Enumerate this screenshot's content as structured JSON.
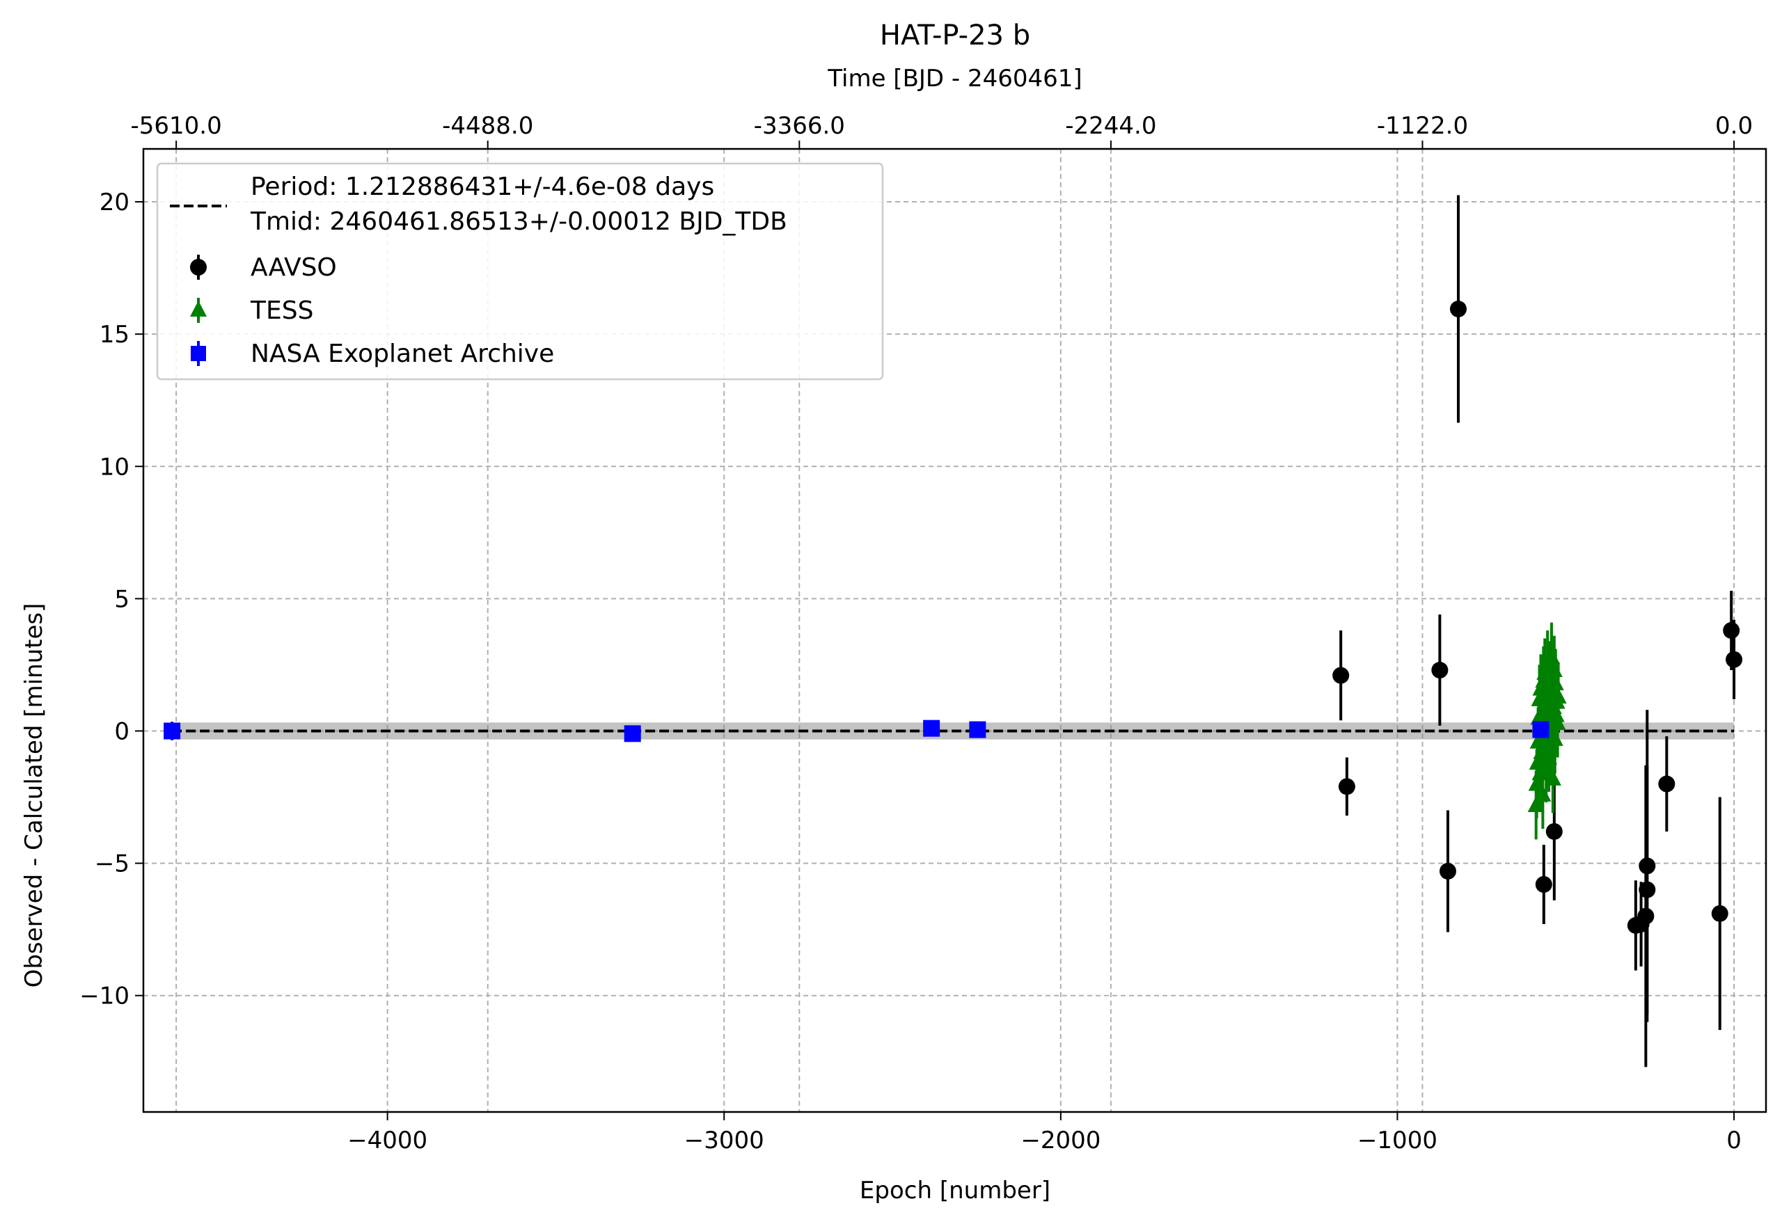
{
  "chart_data": {
    "type": "scatter",
    "title": "HAT-P-23 b",
    "xlabel": "Epoch [number]",
    "ylabel": "Observed - Calculated [minutes]",
    "top_xlabel": "Time [BJD - 2460461]",
    "xlim": [
      -4725,
      95
    ],
    "ylim": [
      -14.4,
      22.0
    ],
    "x_ticks": [
      -4000,
      -3000,
      -2000,
      -1000,
      0
    ],
    "x_tick_labels": [
      "−4000",
      "−3000",
      "−2000",
      "−1000",
      "0"
    ],
    "y_ticks": [
      -10,
      -5,
      0,
      5,
      10,
      15,
      20
    ],
    "y_tick_labels": [
      "−10",
      "−5",
      "0",
      "5",
      "10",
      "15",
      "20"
    ],
    "top_x_ticks": [
      -4627.5,
      -3702,
      -2776.5,
      -1851,
      -925.5,
      0
    ],
    "top_x_tick_labels": [
      "-5610.0",
      "-4488.0",
      "-3366.0",
      "-2244.0",
      "-1122.0",
      "0.0"
    ],
    "grid": true,
    "legend_position": "upper-left",
    "fit": {
      "label_line1": "Period: 1.212886431+/-4.6e-08 days",
      "label_line2": "Tmid: 2460461.86513+/-0.00012 BJD_TDB",
      "value": 0.0,
      "band": [
        -0.32,
        0.32
      ],
      "x_range": [
        -4640,
        0
      ],
      "color": "#000000"
    },
    "series": [
      {
        "name": "AAVSO",
        "marker": "circle",
        "color": "#000000",
        "points": [
          {
            "x": -1168,
            "y": 2.1,
            "err": 1.7
          },
          {
            "x": -1150,
            "y": -2.1,
            "err": 1.1
          },
          {
            "x": -874,
            "y": 2.3,
            "err": 2.1
          },
          {
            "x": -850,
            "y": -5.3,
            "err": 2.3
          },
          {
            "x": -819,
            "y": 15.95,
            "err": 4.3
          },
          {
            "x": -565,
            "y": -5.8,
            "err": 1.5
          },
          {
            "x": -534,
            "y": -3.8,
            "err": 2.6
          },
          {
            "x": -292,
            "y": -7.35,
            "err": 1.7
          },
          {
            "x": -276,
            "y": -7.3,
            "err": 1.6
          },
          {
            "x": -262,
            "y": -7.0,
            "err": 5.7
          },
          {
            "x": -258,
            "y": -6.0,
            "err": 4.7
          },
          {
            "x": -258,
            "y": -5.1,
            "err": 5.9
          },
          {
            "x": -200,
            "y": -2.0,
            "err": 1.8
          },
          {
            "x": -42,
            "y": -6.9,
            "err": 4.4
          },
          {
            "x": -8,
            "y": 3.8,
            "err": 1.5
          },
          {
            "x": 0,
            "y": 2.7,
            "err": 1.5
          }
        ]
      },
      {
        "name": "TESS",
        "marker": "triangle",
        "color": "#008000",
        "points": [
          {
            "x": -588,
            "y": -2.8,
            "err": 1.3
          },
          {
            "x": -586,
            "y": -2.0,
            "err": 1.3
          },
          {
            "x": -584,
            "y": -1.2,
            "err": 1.3
          },
          {
            "x": -582,
            "y": -0.4,
            "err": 1.3
          },
          {
            "x": -580,
            "y": 0.5,
            "err": 1.3
          },
          {
            "x": -578,
            "y": 1.2,
            "err": 1.3
          },
          {
            "x": -576,
            "y": -1.6,
            "err": 1.3
          },
          {
            "x": -574,
            "y": 1.6,
            "err": 1.3
          },
          {
            "x": -572,
            "y": -0.8,
            "err": 1.3
          },
          {
            "x": -570,
            "y": 0.2,
            "err": 1.3
          },
          {
            "x": -568,
            "y": -2.4,
            "err": 1.3
          },
          {
            "x": -566,
            "y": 1.9,
            "err": 1.3
          },
          {
            "x": -564,
            "y": -0.1,
            "err": 1.3
          },
          {
            "x": -562,
            "y": 2.2,
            "err": 1.3
          },
          {
            "x": -560,
            "y": 1.4,
            "err": 1.3
          },
          {
            "x": -558,
            "y": -1.4,
            "err": 1.3
          },
          {
            "x": -556,
            "y": 0.8,
            "err": 1.3
          },
          {
            "x": -554,
            "y": 2.5,
            "err": 1.3
          },
          {
            "x": -552,
            "y": 1.0,
            "err": 1.3
          },
          {
            "x": -550,
            "y": -1.0,
            "err": 1.3
          },
          {
            "x": -548,
            "y": 2.1,
            "err": 1.3
          },
          {
            "x": -546,
            "y": 0.4,
            "err": 1.3
          },
          {
            "x": -544,
            "y": -0.6,
            "err": 1.3
          },
          {
            "x": -542,
            "y": 2.8,
            "err": 1.3
          },
          {
            "x": -540,
            "y": 1.5,
            "err": 1.3
          },
          {
            "x": -538,
            "y": -1.8,
            "err": 1.3
          },
          {
            "x": -536,
            "y": 0.9,
            "err": 1.3
          },
          {
            "x": -534,
            "y": 2.3,
            "err": 1.3
          },
          {
            "x": -532,
            "y": -0.3,
            "err": 1.3
          },
          {
            "x": -530,
            "y": 1.8,
            "err": 1.3
          },
          {
            "x": -528,
            "y": 0.6,
            "err": 1.3
          },
          {
            "x": -526,
            "y": 1.1,
            "err": 1.3
          },
          {
            "x": -524,
            "y": 0.3,
            "err": 1.3
          },
          {
            "x": -522,
            "y": 1.3,
            "err": 1.3
          }
        ]
      },
      {
        "name": "NASA Exoplanet Archive",
        "marker": "square",
        "color": "#0000ff",
        "points": [
          {
            "x": -4640,
            "y": 0.0,
            "err": 0.35
          },
          {
            "x": -3272,
            "y": -0.1,
            "err": 0.2
          },
          {
            "x": -2384,
            "y": 0.1,
            "err": 0.2
          },
          {
            "x": -2247,
            "y": 0.05,
            "err": 0.2
          },
          {
            "x": -574,
            "y": 0.05,
            "err": 0.25
          }
        ]
      }
    ]
  }
}
